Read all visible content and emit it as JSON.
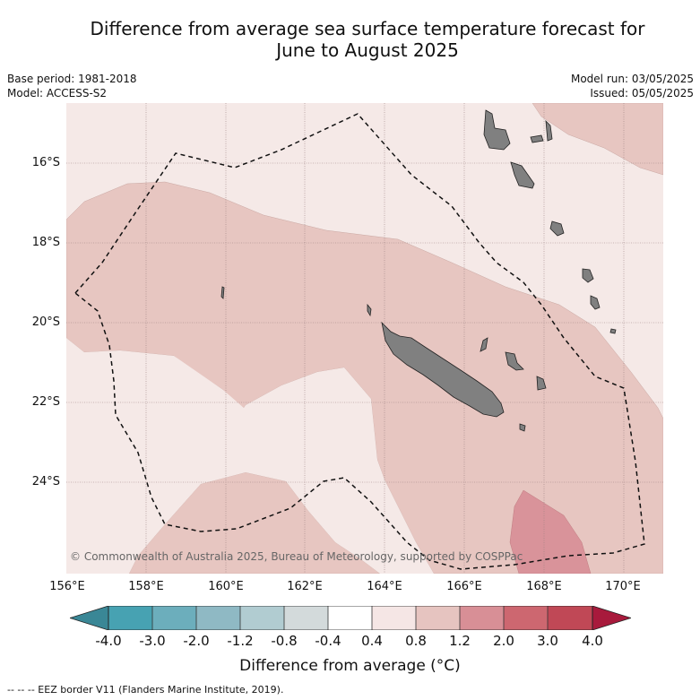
{
  "title_line1": "Difference from average sea surface temperature forecast for",
  "title_line2": "June to August 2025",
  "meta": {
    "base_period": "Base period: 1981-2018",
    "model": "Model: ACCESS-S2",
    "model_run": "Model run: 03/05/2025",
    "issued": "Issued: 05/05/2025"
  },
  "lat_labels": [
    "16°S",
    "18°S",
    "20°S",
    "22°S",
    "24°S"
  ],
  "lon_labels": [
    "156°E",
    "158°E",
    "160°E",
    "162°E",
    "164°E",
    "166°E",
    "168°E",
    "170°E"
  ],
  "copyright": "© Commonwealth of Australia 2025, Bureau of Meteorology, supported by COSPPac",
  "colorbar": {
    "labels": [
      "-4.0",
      "-3.0",
      "-2.0",
      "-1.2",
      "-0.8",
      "-0.4",
      "0.4",
      "0.8",
      "1.2",
      "2.0",
      "3.0",
      "4.0"
    ],
    "colors": [
      "#3a8796",
      "#47a2b2",
      "#6caebc",
      "#8fb9c4",
      "#b1ccd1",
      "#d3dadb",
      "#ffffff",
      "#f5e6e5",
      "#e6c4c0",
      "#d88f96",
      "#cd6770",
      "#c04856",
      "#a81a3c"
    ],
    "title": "Difference from average (°C)"
  },
  "legend_footnote": "-- -- -- EEZ border V11 (Flanders Marine Institute, 2019).",
  "colors": {
    "grid": "#9a8080",
    "land": "#808080",
    "eez_line": "#111111"
  }
}
